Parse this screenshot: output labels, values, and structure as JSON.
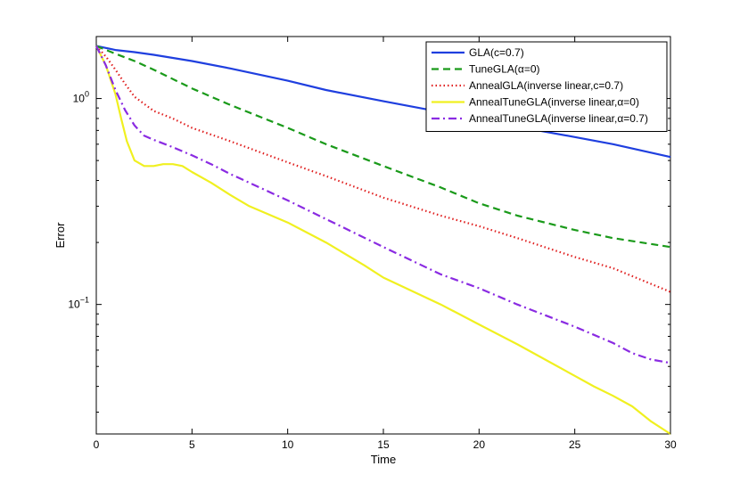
{
  "chart_data": {
    "type": "line",
    "xlabel": "Time",
    "ylabel": "Error",
    "xlim": [
      0,
      30
    ],
    "ylim": [
      0.0235,
      2.0
    ],
    "yscale": "log",
    "xticks": [
      0,
      5,
      10,
      15,
      20,
      25,
      30
    ],
    "yticks": [
      {
        "value": 1,
        "base": "10",
        "exp": "0"
      },
      {
        "value": 0.1,
        "base": "10",
        "exp": "−1"
      }
    ],
    "grid": false,
    "legend_position": "top-right",
    "series": [
      {
        "name": "GLA(c=0.7)",
        "color": "#1f3fdf",
        "style": "solid",
        "x": [
          0,
          1,
          2,
          3,
          5,
          7,
          10,
          12,
          15,
          18,
          20,
          22,
          25,
          27,
          30
        ],
        "y": [
          1.8,
          1.72,
          1.68,
          1.63,
          1.52,
          1.4,
          1.22,
          1.1,
          0.97,
          0.86,
          0.79,
          0.73,
          0.65,
          0.6,
          0.52
        ]
      },
      {
        "name": "TuneGLA(α=0)",
        "color": "#1a9a1a",
        "style": "dashed",
        "x": [
          0,
          1,
          2,
          3,
          5,
          7,
          10,
          12,
          15,
          18,
          20,
          22,
          25,
          27,
          30
        ],
        "y": [
          1.8,
          1.65,
          1.52,
          1.38,
          1.12,
          0.93,
          0.72,
          0.6,
          0.47,
          0.37,
          0.31,
          0.27,
          0.23,
          0.21,
          0.19
        ]
      },
      {
        "name": "AnnealGLA(inverse linear,c=0.7)",
        "color": "#e02020",
        "style": "dotted",
        "x": [
          0,
          0.5,
          1,
          1.5,
          2,
          3,
          4,
          5,
          7,
          10,
          12,
          15,
          18,
          20,
          22,
          25,
          27,
          30
        ],
        "y": [
          1.8,
          1.6,
          1.38,
          1.18,
          1.02,
          0.87,
          0.8,
          0.72,
          0.62,
          0.49,
          0.42,
          0.33,
          0.27,
          0.24,
          0.21,
          0.17,
          0.15,
          0.115
        ]
      },
      {
        "name": "AnnealTuneGLA(inverse linear,α=0)",
        "color": "#f0f020",
        "style": "solid",
        "x": [
          0,
          0.5,
          1,
          1.3,
          1.6,
          2,
          2.5,
          3,
          3.5,
          4,
          4.5,
          5,
          6,
          7,
          8,
          10,
          12,
          14,
          15,
          18,
          20,
          22,
          23,
          25,
          26,
          27,
          28,
          29,
          30
        ],
        "y": [
          1.8,
          1.45,
          1.05,
          0.8,
          0.62,
          0.5,
          0.47,
          0.47,
          0.48,
          0.48,
          0.47,
          0.44,
          0.39,
          0.34,
          0.3,
          0.25,
          0.2,
          0.155,
          0.135,
          0.1,
          0.08,
          0.064,
          0.057,
          0.045,
          0.04,
          0.036,
          0.032,
          0.027,
          0.0235
        ]
      },
      {
        "name": "AnnealTuneGLA(inverse linear,α=0.7)",
        "color": "#8a2be2",
        "style": "dashdot",
        "x": [
          0,
          0.5,
          1,
          1.5,
          2,
          2.5,
          3,
          4,
          5,
          6,
          7,
          8,
          10,
          12,
          15,
          18,
          20,
          22,
          25,
          27,
          28,
          29,
          30
        ],
        "y": [
          1.8,
          1.45,
          1.1,
          0.88,
          0.74,
          0.66,
          0.63,
          0.58,
          0.53,
          0.48,
          0.43,
          0.39,
          0.32,
          0.26,
          0.19,
          0.14,
          0.12,
          0.1,
          0.078,
          0.065,
          0.058,
          0.054,
          0.052
        ]
      }
    ]
  }
}
